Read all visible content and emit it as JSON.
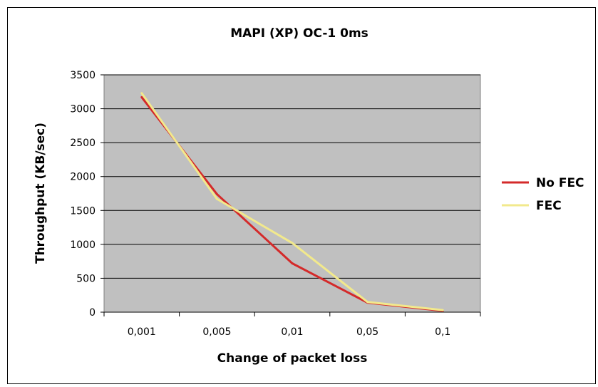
{
  "chart_data": {
    "type": "line",
    "title": "MAPI (XP) OC-1 0ms",
    "xlabel": "Change of packet loss",
    "ylabel": "Throughput (KB/sec)",
    "categories": [
      "0,001",
      "0,005",
      "0,01",
      "0,05",
      "0,1"
    ],
    "ylim": [
      0,
      3500
    ],
    "yticks": [
      "0",
      "500",
      "1000",
      "1500",
      "2000",
      "2500",
      "3000",
      "3500"
    ],
    "grid": "horizontal",
    "legend_position": "right",
    "plot_background": "#c0c0c0",
    "series": [
      {
        "name": "No FEC",
        "color": "#d42a2a",
        "values": [
          3170,
          1740,
          720,
          140,
          20
        ]
      },
      {
        "name": "FEC",
        "color": "#f2e98c",
        "values": [
          3230,
          1670,
          1020,
          150,
          30
        ]
      }
    ]
  }
}
